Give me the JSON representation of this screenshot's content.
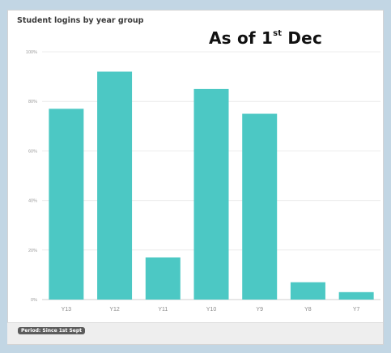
{
  "chart_data": {
    "type": "bar",
    "title": "Student logins by year group",
    "categories": [
      "Y13",
      "Y12",
      "Y11",
      "Y10",
      "Y9",
      "Y8",
      "Y7"
    ],
    "values": [
      77,
      92,
      17,
      85,
      75,
      7,
      3
    ],
    "ylim": [
      0,
      100
    ],
    "yticks": [
      0,
      20,
      40,
      60,
      80,
      100
    ],
    "ytick_labels": [
      "0%",
      "20%",
      "40%",
      "60%",
      "80%",
      "100%"
    ],
    "xlabel": "",
    "ylabel": "",
    "grid": true,
    "bar_color": "#4cc8c4"
  },
  "annotation": {
    "prefix": "As of 1",
    "superscript": "st",
    "suffix": " Dec"
  },
  "footer": {
    "period_label": "Period: Since 1st Sept"
  }
}
